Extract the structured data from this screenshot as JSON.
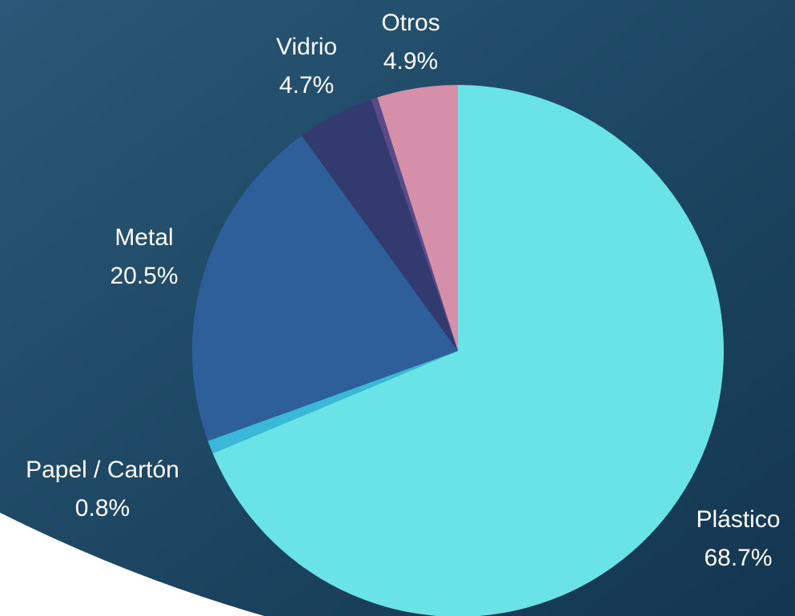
{
  "chart_data": {
    "type": "pie",
    "categories": [
      "Plástico",
      "Papel / Cartón",
      "Metal",
      "Vidrio",
      null,
      "Otros"
    ],
    "values": [
      68.7,
      0.8,
      20.5,
      4.7,
      0.4,
      4.9
    ],
    "value_labels": [
      "68.7%",
      "0.8%",
      "20.5%",
      "4.7%",
      null,
      "4.9%"
    ],
    "colors": [
      "#6ae3e6",
      "#3ab8d8",
      "#2f5f9b",
      "#323a6e",
      "#5b4a88",
      "#d68fa9"
    ]
  }
}
